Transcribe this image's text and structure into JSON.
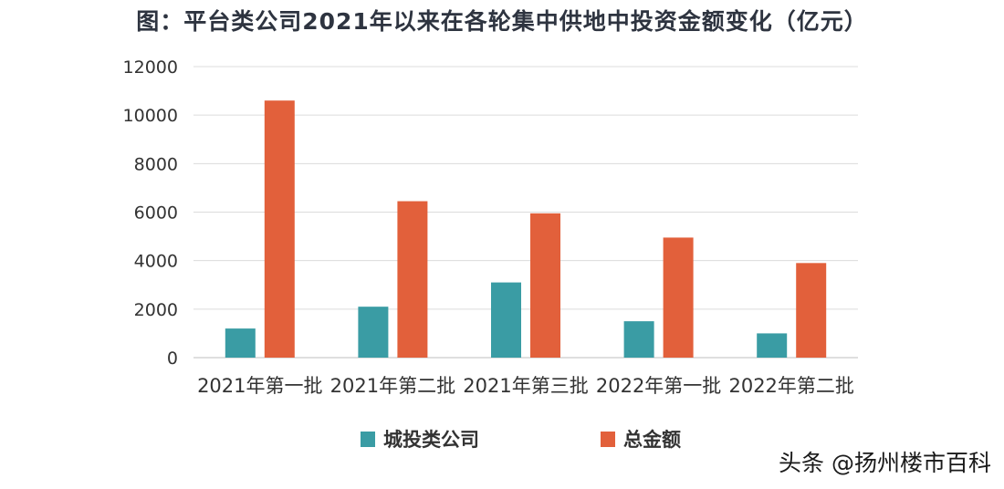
{
  "chart_data": {
    "type": "bar",
    "title": "图：平台类公司2021年以来在各轮集中供地中投资金额变化（亿元）",
    "categories": [
      "2021年第一批",
      "2021年第二批",
      "2021年第三批",
      "2022年第一批",
      "2022年第二批"
    ],
    "series": [
      {
        "name": "城投类公司",
        "color": "#3a9ca4",
        "values": [
          1200,
          2100,
          3100,
          1500,
          1000
        ]
      },
      {
        "name": "总金额",
        "color": "#e2603b",
        "values": [
          10600,
          6450,
          5950,
          4950,
          3900
        ]
      }
    ],
    "ylim": [
      0,
      12000
    ],
    "yticks": [
      0,
      2000,
      4000,
      6000,
      8000,
      10000,
      12000
    ],
    "grid": true,
    "legend_position": "bottom-center"
  },
  "watermark": "头条 @扬州楼市百科"
}
